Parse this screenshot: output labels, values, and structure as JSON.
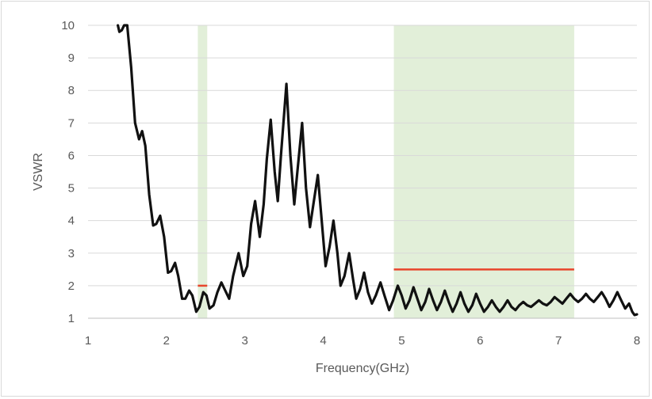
{
  "chart_data": {
    "type": "line",
    "title": "",
    "xlabel": "Frequency(GHz)",
    "ylabel": "VSWR",
    "xlim": [
      1,
      8
    ],
    "ylim": [
      1,
      10
    ],
    "x_ticks": [
      "1",
      "2",
      "3",
      "4",
      "5",
      "6",
      "7",
      "8"
    ],
    "y_ticks": [
      "1",
      "2",
      "3",
      "4",
      "5",
      "6",
      "7",
      "8",
      "9",
      "10"
    ],
    "grid": "horizontal",
    "legend": "none",
    "shaded_bands": [
      {
        "x_start": 2.4,
        "x_end": 2.52,
        "color": "#e2efd9"
      },
      {
        "x_start": 4.9,
        "x_end": 7.2,
        "color": "#e2efd9"
      }
    ],
    "threshold_lines": [
      {
        "x_start": 2.4,
        "x_end": 2.52,
        "y": 2.0,
        "color": "#e8452c"
      },
      {
        "x_start": 4.9,
        "x_end": 7.2,
        "y": 2.5,
        "color": "#e8452c"
      }
    ],
    "series": [
      {
        "color": "#111111",
        "points": [
          [
            1.38,
            10.0
          ],
          [
            1.4,
            9.8
          ],
          [
            1.43,
            9.85
          ],
          [
            1.46,
            10.0
          ],
          [
            1.5,
            10.0
          ],
          [
            1.55,
            8.7
          ],
          [
            1.6,
            7.0
          ],
          [
            1.65,
            6.5
          ],
          [
            1.69,
            6.75
          ],
          [
            1.73,
            6.3
          ],
          [
            1.78,
            4.8
          ],
          [
            1.83,
            3.85
          ],
          [
            1.87,
            3.9
          ],
          [
            1.92,
            4.15
          ],
          [
            1.97,
            3.5
          ],
          [
            2.02,
            2.4
          ],
          [
            2.06,
            2.45
          ],
          [
            2.11,
            2.7
          ],
          [
            2.15,
            2.3
          ],
          [
            2.2,
            1.6
          ],
          [
            2.24,
            1.6
          ],
          [
            2.29,
            1.85
          ],
          [
            2.33,
            1.7
          ],
          [
            2.38,
            1.2
          ],
          [
            2.42,
            1.35
          ],
          [
            2.47,
            1.8
          ],
          [
            2.51,
            1.7
          ],
          [
            2.55,
            1.3
          ],
          [
            2.6,
            1.4
          ],
          [
            2.65,
            1.8
          ],
          [
            2.7,
            2.1
          ],
          [
            2.74,
            1.9
          ],
          [
            2.8,
            1.6
          ],
          [
            2.85,
            2.3
          ],
          [
            2.92,
            3.0
          ],
          [
            2.98,
            2.3
          ],
          [
            3.03,
            2.6
          ],
          [
            3.08,
            3.9
          ],
          [
            3.13,
            4.6
          ],
          [
            3.19,
            3.5
          ],
          [
            3.24,
            4.5
          ],
          [
            3.28,
            5.9
          ],
          [
            3.33,
            7.1
          ],
          [
            3.38,
            5.5
          ],
          [
            3.42,
            4.6
          ],
          [
            3.46,
            6.0
          ],
          [
            3.53,
            8.2
          ],
          [
            3.58,
            6.0
          ],
          [
            3.63,
            4.5
          ],
          [
            3.67,
            5.5
          ],
          [
            3.73,
            7.0
          ],
          [
            3.78,
            5.0
          ],
          [
            3.83,
            3.8
          ],
          [
            3.88,
            4.6
          ],
          [
            3.93,
            5.4
          ],
          [
            3.98,
            4.0
          ],
          [
            4.03,
            2.6
          ],
          [
            4.08,
            3.2
          ],
          [
            4.13,
            4.0
          ],
          [
            4.18,
            3.0
          ],
          [
            4.22,
            2.0
          ],
          [
            4.27,
            2.3
          ],
          [
            4.33,
            3.0
          ],
          [
            4.38,
            2.2
          ],
          [
            4.42,
            1.6
          ],
          [
            4.47,
            1.9
          ],
          [
            4.52,
            2.4
          ],
          [
            4.57,
            1.8
          ],
          [
            4.62,
            1.45
          ],
          [
            4.67,
            1.7
          ],
          [
            4.73,
            2.1
          ],
          [
            4.78,
            1.7
          ],
          [
            4.84,
            1.25
          ],
          [
            4.89,
            1.55
          ],
          [
            4.95,
            2.0
          ],
          [
            5.0,
            1.7
          ],
          [
            5.05,
            1.3
          ],
          [
            5.1,
            1.55
          ],
          [
            5.15,
            1.95
          ],
          [
            5.2,
            1.6
          ],
          [
            5.25,
            1.25
          ],
          [
            5.3,
            1.5
          ],
          [
            5.35,
            1.9
          ],
          [
            5.4,
            1.55
          ],
          [
            5.45,
            1.25
          ],
          [
            5.5,
            1.5
          ],
          [
            5.55,
            1.85
          ],
          [
            5.6,
            1.5
          ],
          [
            5.65,
            1.2
          ],
          [
            5.7,
            1.45
          ],
          [
            5.75,
            1.8
          ],
          [
            5.8,
            1.45
          ],
          [
            5.85,
            1.2
          ],
          [
            5.9,
            1.4
          ],
          [
            5.95,
            1.75
          ],
          [
            6.0,
            1.45
          ],
          [
            6.05,
            1.2
          ],
          [
            6.1,
            1.35
          ],
          [
            6.15,
            1.55
          ],
          [
            6.2,
            1.35
          ],
          [
            6.25,
            1.2
          ],
          [
            6.3,
            1.35
          ],
          [
            6.35,
            1.55
          ],
          [
            6.4,
            1.35
          ],
          [
            6.45,
            1.25
          ],
          [
            6.5,
            1.4
          ],
          [
            6.55,
            1.5
          ],
          [
            6.6,
            1.4
          ],
          [
            6.65,
            1.35
          ],
          [
            6.7,
            1.45
          ],
          [
            6.75,
            1.55
          ],
          [
            6.8,
            1.45
          ],
          [
            6.85,
            1.4
          ],
          [
            6.9,
            1.5
          ],
          [
            6.95,
            1.65
          ],
          [
            7.0,
            1.55
          ],
          [
            7.05,
            1.45
          ],
          [
            7.1,
            1.6
          ],
          [
            7.15,
            1.75
          ],
          [
            7.2,
            1.6
          ],
          [
            7.25,
            1.5
          ],
          [
            7.3,
            1.6
          ],
          [
            7.35,
            1.75
          ],
          [
            7.4,
            1.6
          ],
          [
            7.45,
            1.5
          ],
          [
            7.5,
            1.65
          ],
          [
            7.55,
            1.8
          ],
          [
            7.6,
            1.6
          ],
          [
            7.65,
            1.35
          ],
          [
            7.7,
            1.55
          ],
          [
            7.75,
            1.8
          ],
          [
            7.8,
            1.55
          ],
          [
            7.85,
            1.3
          ],
          [
            7.9,
            1.45
          ],
          [
            7.94,
            1.2
          ],
          [
            7.97,
            1.1
          ],
          [
            8.0,
            1.12
          ]
        ]
      }
    ]
  }
}
